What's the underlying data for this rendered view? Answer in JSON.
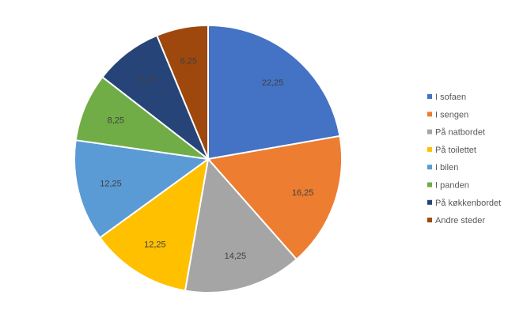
{
  "chart_data": {
    "type": "pie",
    "title": "",
    "start_angle_deg": 0,
    "direction": "clockwise",
    "legend_position": "right",
    "data_labels": true,
    "series": [
      {
        "values": [
          22.25,
          16.25,
          14.25,
          12.25,
          12.25,
          8.25,
          8.25,
          6.25
        ],
        "labels": [
          "22,25",
          "16,25",
          "14,25",
          "12,25",
          "12,25",
          "8,25",
          "8,25",
          "6,25"
        ]
      }
    ],
    "categories": [
      "I sofaen",
      "I sengen",
      "På natbordet",
      "På toilettet",
      "I bilen",
      "I panden",
      "På køkkenbordet",
      "Andre steder"
    ],
    "colors": [
      "#4472C4",
      "#ED7D31",
      "#A5A5A5",
      "#FFC000",
      "#5B9BD5",
      "#70AD47",
      "#264478",
      "#9E480E"
    ],
    "label_colors": [
      "#404040",
      "#404040",
      "#404040",
      "#404040",
      "#404040",
      "#404040",
      "#404040",
      "#404040"
    ]
  }
}
